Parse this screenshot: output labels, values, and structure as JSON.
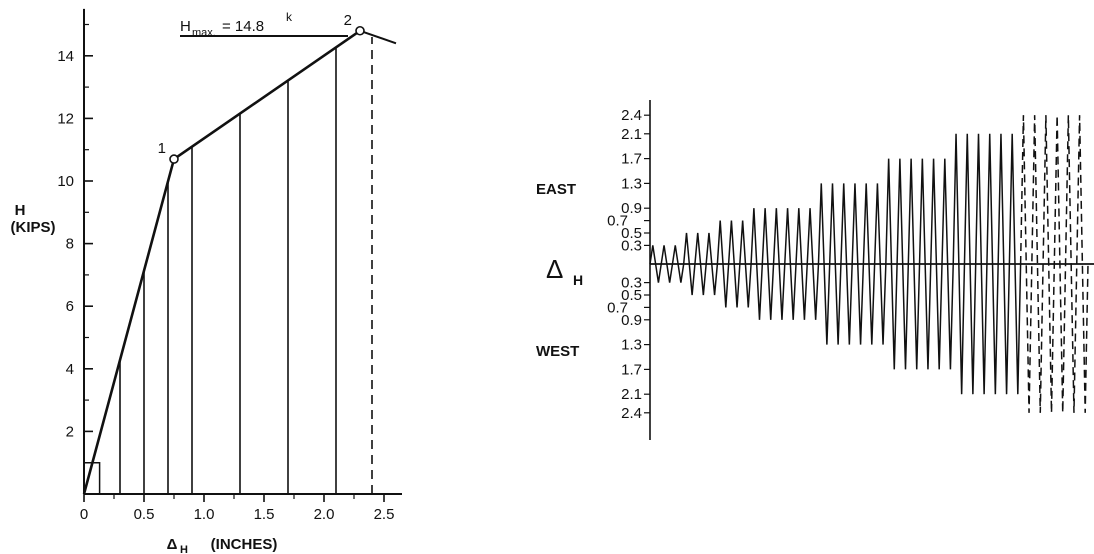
{
  "chart_data": [
    {
      "type": "line",
      "xlabel": "Δ",
      "xlabel_sub": "H",
      "xlabel_units": "(INCHES)",
      "ylabel": "H",
      "ylabel_units": "(KIPS)",
      "xlim": [
        0,
        2.65
      ],
      "ylim": [
        0,
        15.5
      ],
      "x_ticks": [
        0,
        0.5,
        1.0,
        1.5,
        2.0,
        2.5
      ],
      "x_tick_labels": [
        "0",
        "0.5",
        "1.0",
        "1.5",
        "2.0",
        "2.5"
      ],
      "y_ticks": [
        2,
        4,
        6,
        8,
        10,
        12,
        14
      ],
      "y_tick_labels": [
        "2",
        "4",
        "6",
        "8",
        "10",
        "12",
        "14"
      ],
      "grid": false,
      "envelope": {
        "x": [
          0,
          0.75,
          2.3
        ],
        "y": [
          0,
          10.7,
          14.8
        ]
      },
      "post_peak": {
        "x": [
          2.3,
          2.6
        ],
        "y": [
          14.8,
          14.4
        ]
      },
      "initial_loop": {
        "x": [
          0,
          0.13,
          0.13
        ],
        "y": [
          1,
          1,
          0
        ]
      },
      "cycle_amplitudes": [
        0.3,
        0.5,
        0.7,
        0.9,
        1.3,
        1.7,
        2.1
      ],
      "dashed_cycle_amplitude": 2.4,
      "points": [
        {
          "label": "1",
          "x": 0.75,
          "y": 10.7
        },
        {
          "label": "2",
          "x": 2.3,
          "y": 14.8
        }
      ],
      "annotation": {
        "text_main": "H",
        "text_sub": "max.",
        "text_value": " = 14.8",
        "text_sup": "k"
      }
    },
    {
      "type": "line",
      "ylabel": "Δ",
      "ylabel_sub": "H",
      "direction_labels": {
        "positive": "EAST",
        "negative": "WEST"
      },
      "y_tick_labels": [
        "2.4",
        "2.1",
        "1.7",
        "1.3",
        "0.9",
        "0.7",
        "0.5",
        "0.3"
      ],
      "cycle_groups": [
        {
          "amplitude": 0.3,
          "cycles": 3,
          "dashed": false
        },
        {
          "amplitude": 0.5,
          "cycles": 3,
          "dashed": false
        },
        {
          "amplitude": 0.7,
          "cycles": 3,
          "dashed": false
        },
        {
          "amplitude": 0.9,
          "cycles": 6,
          "dashed": false
        },
        {
          "amplitude": 1.3,
          "cycles": 6,
          "dashed": false
        },
        {
          "amplitude": 1.7,
          "cycles": 6,
          "dashed": false
        },
        {
          "amplitude": 2.1,
          "cycles": 6,
          "dashed": false
        },
        {
          "amplitude": 2.4,
          "cycles": 6,
          "dashed": true
        }
      ]
    }
  ]
}
